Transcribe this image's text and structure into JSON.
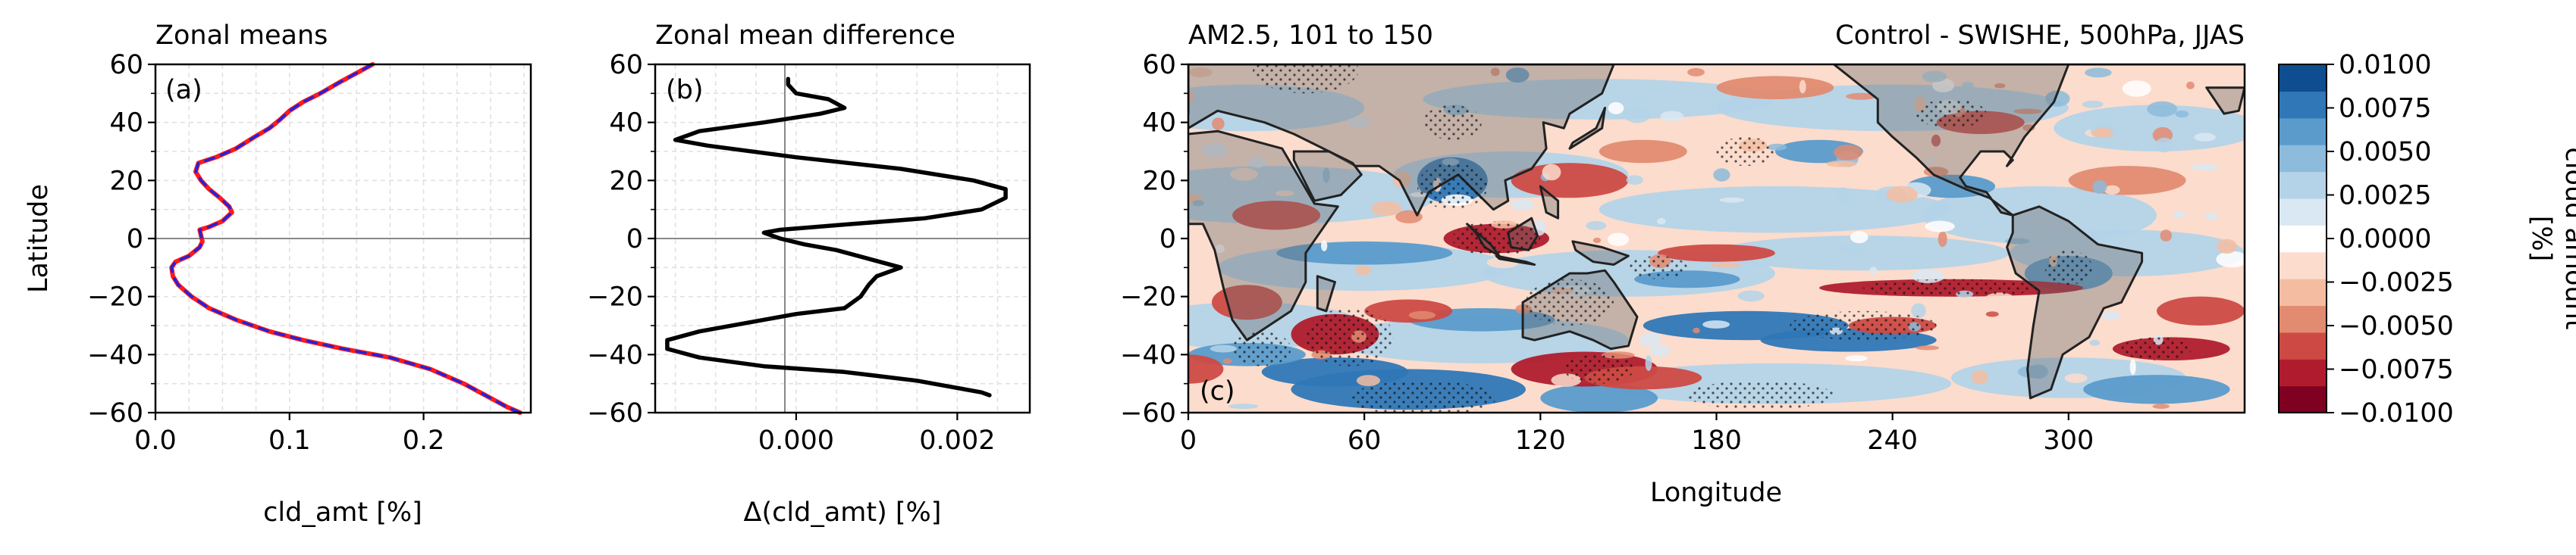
{
  "chart_data": [
    {
      "panel": "a",
      "type": "line",
      "title": "Zonal means",
      "label": "(a)",
      "xlabel": "cld_amt [%]",
      "ylabel": "Latitude",
      "xlim": [
        0,
        0.28
      ],
      "ylim": [
        -60,
        60
      ],
      "xticks": [
        0.0,
        0.1,
        0.2
      ],
      "xtick_labels": [
        "0.0",
        "0.1",
        "0.2"
      ],
      "yticks": [
        -60,
        -40,
        -20,
        0,
        20,
        40,
        60
      ],
      "ytick_labels": [
        "−60",
        "−40",
        "−20",
        "0",
        "20",
        "40",
        "60"
      ],
      "grid": true,
      "colors": {
        "series_control": "#ff1a1a",
        "series_swishe": "#2222dd"
      },
      "series": [
        {
          "points": [
            [
              0.272,
              -60
            ],
            [
              0.262,
              -58
            ],
            [
              0.25,
              -55
            ],
            [
              0.23,
              -50
            ],
            [
              0.205,
              -45
            ],
            [
              0.175,
              -41
            ],
            [
              0.14,
              -38
            ],
            [
              0.11,
              -35
            ],
            [
              0.085,
              -32
            ],
            [
              0.06,
              -28
            ],
            [
              0.04,
              -24
            ],
            [
              0.027,
              -20
            ],
            [
              0.017,
              -16
            ],
            [
              0.013,
              -13
            ],
            [
              0.012,
              -10
            ],
            [
              0.015,
              -8
            ],
            [
              0.025,
              -6
            ],
            [
              0.033,
              -3
            ],
            [
              0.035,
              -1
            ],
            [
              0.034,
              1
            ],
            [
              0.033,
              3
            ],
            [
              0.04,
              4
            ],
            [
              0.05,
              6
            ],
            [
              0.057,
              9
            ],
            [
              0.055,
              11
            ],
            [
              0.048,
              14
            ],
            [
              0.04,
              17
            ],
            [
              0.034,
              20
            ],
            [
              0.03,
              23
            ],
            [
              0.032,
              26
            ],
            [
              0.045,
              28
            ],
            [
              0.06,
              31
            ],
            [
              0.074,
              35
            ],
            [
              0.085,
              38
            ],
            [
              0.093,
              41
            ],
            [
              0.1,
              44
            ],
            [
              0.11,
              47
            ],
            [
              0.123,
              50
            ],
            [
              0.138,
              54
            ],
            [
              0.15,
              57
            ],
            [
              0.162,
              60
            ]
          ]
        },
        {
          "points": [
            [
              0.272,
              -60
            ],
            [
              0.262,
              -58
            ],
            [
              0.25,
              -55
            ],
            [
              0.23,
              -50
            ],
            [
              0.205,
              -45
            ],
            [
              0.175,
              -41
            ],
            [
              0.14,
              -38
            ],
            [
              0.11,
              -35
            ],
            [
              0.085,
              -32
            ],
            [
              0.06,
              -28
            ],
            [
              0.04,
              -24
            ],
            [
              0.027,
              -20
            ],
            [
              0.017,
              -16
            ],
            [
              0.013,
              -13
            ],
            [
              0.012,
              -10
            ],
            [
              0.015,
              -8
            ],
            [
              0.025,
              -6
            ],
            [
              0.033,
              -3
            ],
            [
              0.035,
              -1
            ],
            [
              0.034,
              1
            ],
            [
              0.033,
              3
            ],
            [
              0.04,
              4
            ],
            [
              0.05,
              6
            ],
            [
              0.057,
              9
            ],
            [
              0.055,
              11
            ],
            [
              0.048,
              14
            ],
            [
              0.04,
              17
            ],
            [
              0.034,
              20
            ],
            [
              0.03,
              23
            ],
            [
              0.032,
              26
            ],
            [
              0.045,
              28
            ],
            [
              0.06,
              31
            ],
            [
              0.074,
              35
            ],
            [
              0.085,
              38
            ],
            [
              0.093,
              41
            ],
            [
              0.1,
              44
            ],
            [
              0.11,
              47
            ],
            [
              0.123,
              50
            ],
            [
              0.138,
              54
            ],
            [
              0.15,
              57
            ],
            [
              0.162,
              60
            ]
          ]
        }
      ]
    },
    {
      "panel": "b",
      "type": "line",
      "title": "Zonal mean difference",
      "label": "(b)",
      "xlabel": "Δ(cld_amt) [%]",
      "xlim": [
        -0.00175,
        0.0029
      ],
      "ylim": [
        -60,
        60
      ],
      "xticks": [
        0.0,
        0.002
      ],
      "xtick_labels": [
        "0.000",
        "0.002"
      ],
      "yticks": [
        -60,
        -40,
        -20,
        0,
        20,
        40,
        60
      ],
      "ytick_labels": [
        "−60",
        "−40",
        "−20",
        "0",
        "20",
        "40",
        "60"
      ],
      "grid": true,
      "colors": {
        "series": "#000000"
      },
      "series": [
        {
          "points": [
            [
              0.0024,
              -54
            ],
            [
              0.0023,
              -53
            ],
            [
              0.0015,
              -49
            ],
            [
              0.0006,
              -46
            ],
            [
              -0.0004,
              -44
            ],
            [
              -0.0012,
              -41
            ],
            [
              -0.0016,
              -38
            ],
            [
              -0.0016,
              -35
            ],
            [
              -0.0012,
              -32
            ],
            [
              -0.0006,
              -29
            ],
            [
              0.0,
              -26
            ],
            [
              0.0006,
              -24
            ],
            [
              0.0008,
              -20
            ],
            [
              0.0009,
              -16
            ],
            [
              0.001,
              -13
            ],
            [
              0.0013,
              -10
            ],
            [
              0.0009,
              -7
            ],
            [
              0.0005,
              -4
            ],
            [
              0.0001,
              -2
            ],
            [
              -0.0002,
              0
            ],
            [
              -0.0004,
              2
            ],
            [
              -0.0002,
              3
            ],
            [
              0.0007,
              5
            ],
            [
              0.0016,
              7
            ],
            [
              0.0023,
              10
            ],
            [
              0.0026,
              14
            ],
            [
              0.0026,
              17
            ],
            [
              0.0022,
              20
            ],
            [
              0.0013,
              24
            ],
            [
              0.0,
              28
            ],
            [
              -0.0011,
              32
            ],
            [
              -0.0015,
              34
            ],
            [
              -0.0012,
              37
            ],
            [
              -0.0004,
              40
            ],
            [
              0.0003,
              43
            ],
            [
              0.0006,
              45
            ],
            [
              0.0004,
              48
            ],
            [
              0.0,
              50
            ],
            [
              -0.0001,
              53
            ],
            [
              -0.0001,
              55
            ]
          ]
        }
      ]
    },
    {
      "panel": "c",
      "type": "heatmap",
      "title_left": "AM2.5, 101 to 150",
      "title_right": "Control - SWISHE, 500hPa, JJAS",
      "label": "(c)",
      "xlabel": "Longitude",
      "xlim": [
        0,
        360
      ],
      "ylim": [
        -60,
        60
      ],
      "xticks": [
        0,
        60,
        120,
        180,
        240,
        300
      ],
      "xtick_labels": [
        "0",
        "60",
        "120",
        "180",
        "240",
        "300"
      ],
      "yticks": [
        -60,
        -40,
        -20,
        0,
        20,
        40,
        60
      ],
      "ytick_labels": [
        "−60",
        "−40",
        "−20",
        "0",
        "20",
        "40",
        "60"
      ],
      "colorbar": {
        "label": "cloud amount\n[%]",
        "ticks": [
          -0.01,
          -0.0075,
          -0.005,
          -0.0025,
          0.0,
          0.0025,
          0.005,
          0.0075,
          0.01
        ],
        "tick_labels": [
          "−0.0100",
          "−0.0075",
          "−0.0050",
          "−0.0025",
          "0.0000",
          "0.0025",
          "0.0050",
          "0.0075",
          "0.0100"
        ],
        "levels_bottom_to_top": [
          "#7f0020",
          "#b01c2d",
          "#cd4a44",
          "#e28b71",
          "#f4bda1",
          "#fbdccd",
          "#ffffff",
          "#d9e8f2",
          "#b4d3e8",
          "#8cbbdb",
          "#5a9bcb",
          "#2f77b6",
          "#0e4d8f"
        ]
      },
      "field_description": [
        {
          "lon": [
            0,
            360
          ],
          "lat": [
            -60,
            60
          ],
          "value": -0.001
        },
        {
          "lon": [
            40,
            100
          ],
          "lat": [
            -60,
            -45
          ],
          "value": 0.009
        },
        {
          "lon": [
            160,
            260
          ],
          "lat": [
            -40,
            -20
          ],
          "value": 0.009
        },
        {
          "lon": [
            240,
            300
          ],
          "lat": [
            -28,
            -15
          ],
          "value": -0.009
        },
        {
          "lon": [
            80,
            100
          ],
          "lat": [
            10,
            25
          ],
          "value": 0.008
        },
        {
          "lon": [
            95,
            125
          ],
          "lat": [
            -5,
            5
          ],
          "value": -0.009
        }
      ]
    }
  ]
}
